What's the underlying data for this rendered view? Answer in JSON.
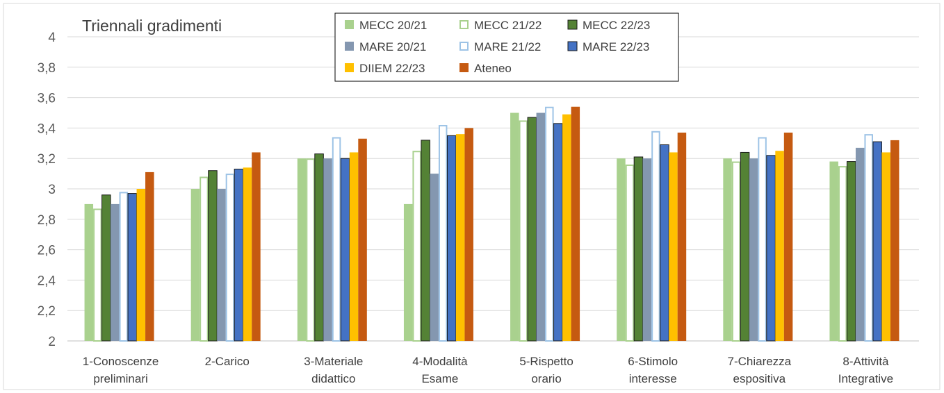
{
  "chart_data": {
    "type": "bar",
    "title": "Triennali gradimenti",
    "xlabel": "",
    "ylabel": "",
    "ylim": [
      2,
      4
    ],
    "yticks": [
      "2",
      "2,2",
      "2,4",
      "2,6",
      "2,8",
      "3",
      "3,2",
      "3,4",
      "3,6",
      "3,8",
      "4"
    ],
    "grid": true,
    "legend_position": "top",
    "categories": [
      [
        "1-Conoscenze",
        "preliminari"
      ],
      [
        "2-Carico"
      ],
      [
        "3-Materiale",
        "didattico"
      ],
      [
        "4-Modalità",
        "Esame"
      ],
      [
        "5-Rispetto",
        "orario"
      ],
      [
        "6-Stimolo",
        "interesse"
      ],
      [
        "7-Chiarezza",
        "espositiva"
      ],
      [
        "8-Attività",
        "Integrative"
      ]
    ],
    "series": [
      {
        "name": "MECC 20/21",
        "color": "#a9d18e",
        "style": "filled",
        "values": [
          2.9,
          3.0,
          3.2,
          2.9,
          3.5,
          3.2,
          3.2,
          3.18
        ]
      },
      {
        "name": "MECC 21/22",
        "color": "#a9d18e",
        "style": "outline",
        "values": [
          2.87,
          3.08,
          3.2,
          3.25,
          3.45,
          3.16,
          3.18,
          3.15
        ]
      },
      {
        "name": "MECC 22/23",
        "color": "#548235",
        "style": "filled-dark-border",
        "values": [
          2.96,
          3.12,
          3.23,
          3.32,
          3.47,
          3.21,
          3.24,
          3.18
        ]
      },
      {
        "name": "MARE 20/21",
        "color": "#8497b0",
        "style": "filled",
        "values": [
          2.9,
          3.0,
          3.2,
          3.1,
          3.5,
          3.2,
          3.2,
          3.27
        ]
      },
      {
        "name": "MARE 21/22",
        "color": "#9dc3e6",
        "style": "outline",
        "values": [
          2.98,
          3.1,
          3.34,
          3.42,
          3.54,
          3.38,
          3.34,
          3.36
        ]
      },
      {
        "name": "MARE 22/23",
        "color": "#4472c4",
        "style": "filled-dark-border",
        "values": [
          2.97,
          3.13,
          3.2,
          3.35,
          3.43,
          3.29,
          3.22,
          3.31
        ]
      },
      {
        "name": "DIIEM 22/23",
        "color": "#ffc000",
        "style": "filled",
        "values": [
          3.0,
          3.14,
          3.24,
          3.36,
          3.49,
          3.24,
          3.25,
          3.24
        ]
      },
      {
        "name": "Ateneo",
        "color": "#c55a11",
        "style": "filled",
        "values": [
          3.11,
          3.24,
          3.33,
          3.4,
          3.54,
          3.37,
          3.37,
          3.32
        ]
      }
    ]
  }
}
